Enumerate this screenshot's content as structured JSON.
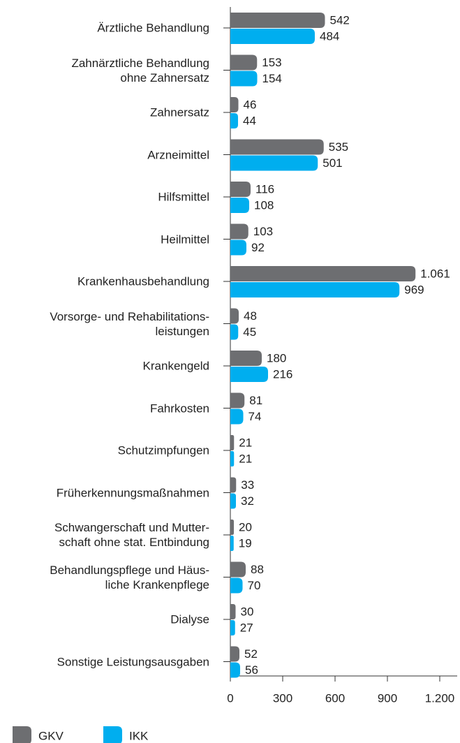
{
  "chart_data": {
    "type": "bar",
    "orientation": "horizontal",
    "categories": [
      "Ärztliche Behandlung",
      "Zahnärztliche Behandlung\nohne Zahnersatz",
      "Zahnersatz",
      "Arzneimittel",
      "Hilfsmittel",
      "Heilmittel",
      "Krankenhausbehandlung",
      "Vorsorge- und Rehabilitations-\nleistungen",
      "Krankengeld",
      "Fahrkosten",
      "Schutzimpfungen",
      "Früherkennungsmaßnahmen",
      "Schwangerschaft und Mutter-\nschaft ohne stat. Entbindung",
      "Behandlungspflege und Häus-\nliche Krankenpflege",
      "Dialyse",
      "Sonstige Leistungsausgaben"
    ],
    "series": [
      {
        "name": "GKV",
        "color": "#6d6e71",
        "values": [
          542,
          153,
          46,
          535,
          116,
          103,
          1061,
          48,
          180,
          81,
          21,
          33,
          20,
          88,
          30,
          52
        ],
        "value_labels": [
          "542",
          "153",
          "46",
          "535",
          "116",
          "103",
          "1.061",
          "48",
          "180",
          "81",
          "21",
          "33",
          "20",
          "88",
          "30",
          "52"
        ]
      },
      {
        "name": "IKK",
        "color": "#00aeef",
        "values": [
          484,
          154,
          44,
          501,
          108,
          92,
          969,
          45,
          216,
          74,
          21,
          32,
          19,
          70,
          27,
          56
        ]
      }
    ],
    "xlim": [
      0,
      1200
    ],
    "xticks": [
      0,
      300,
      600,
      900,
      {
        "value": 1200,
        "label": "1.200"
      }
    ]
  }
}
